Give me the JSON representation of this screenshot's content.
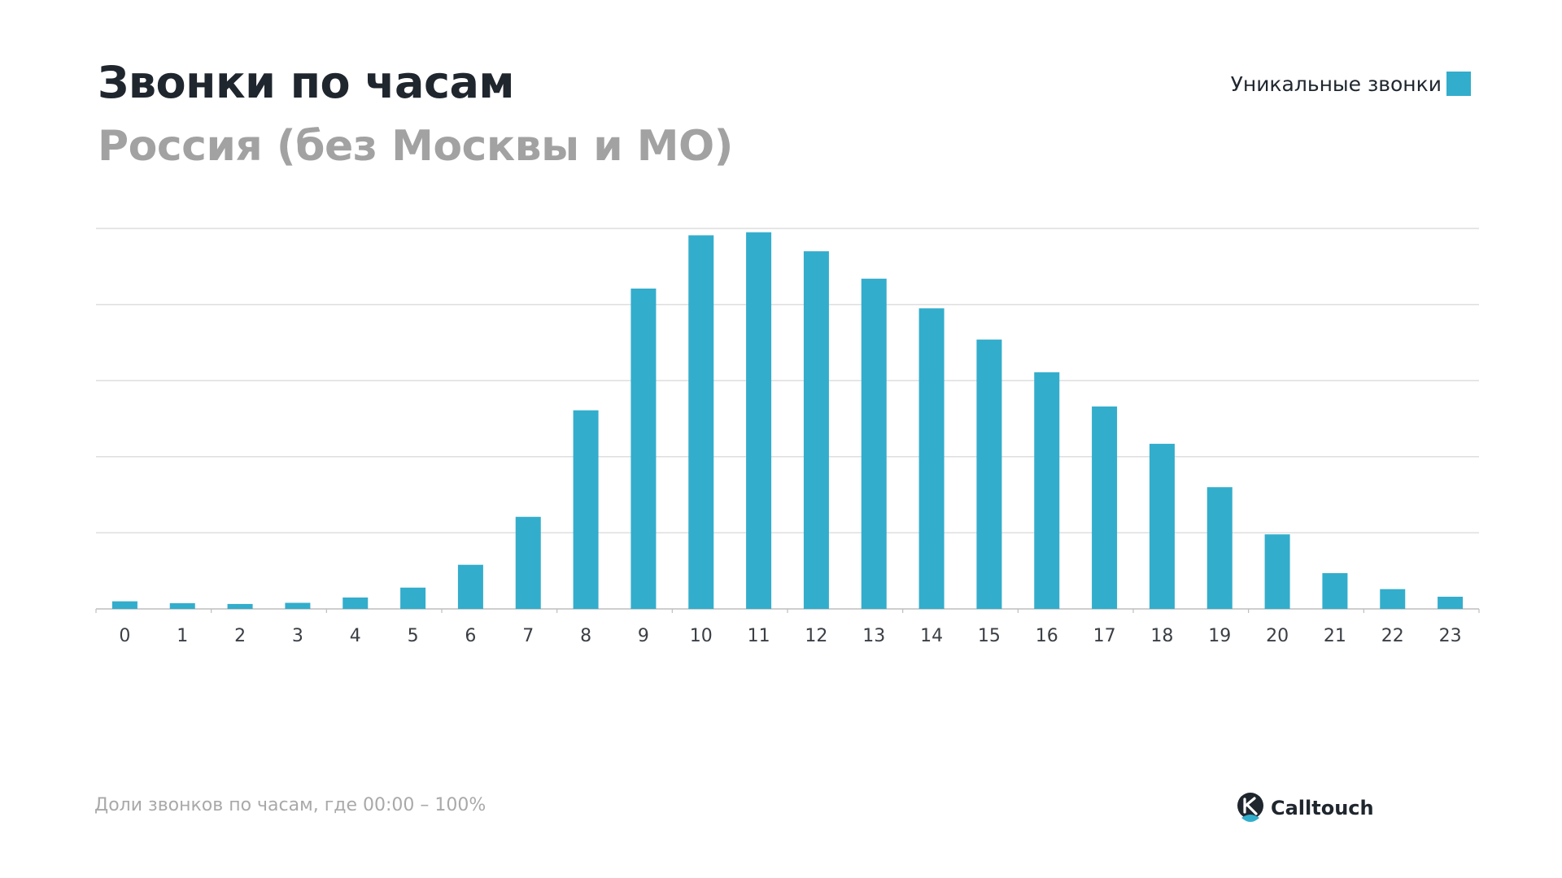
{
  "header": {
    "title": "Звонки по часам",
    "subtitle": "Россия (без Москвы и МО)"
  },
  "legend": {
    "label": "Уникальные звонки",
    "color": "#33adcc"
  },
  "footer": {
    "note": "Доли звонков по часам, где 00:00 – 100%",
    "brand": "Calltouch"
  },
  "colors": {
    "bar": "#33adcc",
    "grid": "#dedede",
    "axis": "#bdbdbd",
    "tick_text": "#3a3f45"
  },
  "chart_data": {
    "type": "bar",
    "categories": [
      "0",
      "1",
      "2",
      "3",
      "4",
      "5",
      "6",
      "7",
      "8",
      "9",
      "10",
      "11",
      "12",
      "13",
      "14",
      "15",
      "16",
      "17",
      "18",
      "19",
      "20",
      "21",
      "22",
      "23"
    ],
    "series": [
      {
        "name": "Уникальные звонки",
        "values": [
          100,
          75,
          65,
          80,
          150,
          280,
          580,
          1210,
          2610,
          4210,
          4910,
          4950,
          4700,
          4340,
          3950,
          3540,
          3110,
          2660,
          2170,
          1600,
          980,
          470,
          260,
          160
        ]
      }
    ],
    "ylim": [
      0,
      5000
    ],
    "yticks_count": 5,
    "grid": true,
    "legend_position": "top-right",
    "xlabel": "",
    "ylabel": ""
  }
}
